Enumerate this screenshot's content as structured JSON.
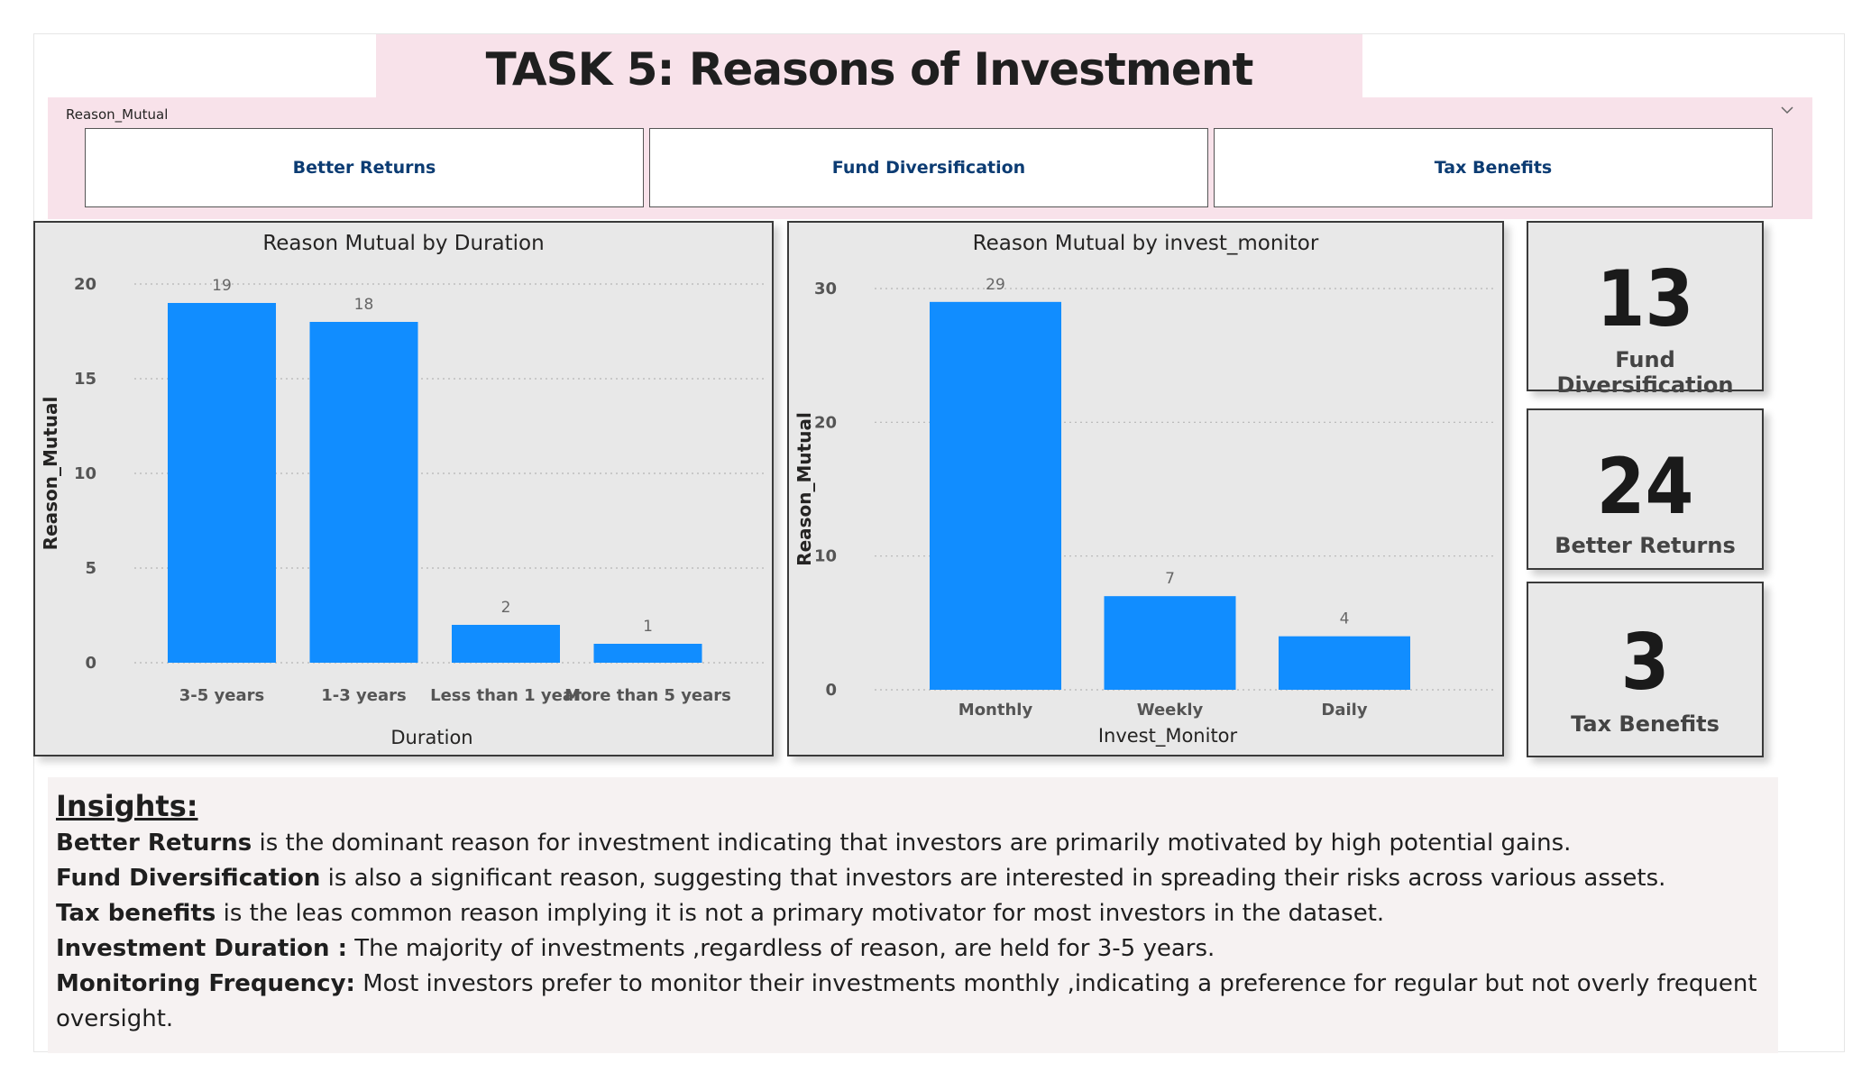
{
  "page": {
    "title": "TASK 5: Reasons of Investment"
  },
  "slicer": {
    "header": "Reason_Mutual",
    "options": [
      "Better Returns",
      "Fund Diversification",
      "Tax Benefits"
    ]
  },
  "colors": {
    "bar": "#118dff",
    "title_band": "#f8e2ea",
    "slicer_text": "#0c3c73",
    "panel_bg": "#e8e8e8"
  },
  "chart_data": [
    {
      "type": "bar",
      "title": "Reason Mutual by Duration",
      "xlabel": "Duration",
      "ylabel": "Reason_Mutual",
      "categories": [
        "3-5 years",
        "1-3 years",
        "Less than 1 year",
        "More than 5 years"
      ],
      "values": [
        19,
        18,
        2,
        1
      ],
      "yticks": [
        0,
        5,
        10,
        15,
        20
      ],
      "ylim": [
        0,
        20
      ],
      "grid": true,
      "data_labels": true
    },
    {
      "type": "bar",
      "title": "Reason Mutual by invest_monitor",
      "xlabel": "Invest_Monitor",
      "ylabel": "Reason_Mutual",
      "categories": [
        "Monthly",
        "Weekly",
        "Daily"
      ],
      "values": [
        29,
        7,
        4
      ],
      "yticks": [
        0,
        10,
        20,
        30
      ],
      "ylim": [
        0,
        30
      ],
      "grid": true,
      "data_labels": true
    }
  ],
  "cards": [
    {
      "value": "13",
      "label": "Fund Diversification"
    },
    {
      "value": "24",
      "label": "Better Returns"
    },
    {
      "value": "3",
      "label": "Tax Benefits"
    }
  ],
  "insights": {
    "heading": "Insights:",
    "lines": [
      {
        "bold": "Better Returns",
        "text": " is the dominant reason for investment indicating that investors are primarily motivated by high potential gains."
      },
      {
        "bold": "Fund Diversification",
        "text": " is also a significant reason, suggesting that investors are interested in spreading their risks across various assets."
      },
      {
        "bold": "Tax benefits",
        "text": "  is the leas common reason implying it is not a primary motivator for most investors in the dataset."
      },
      {
        "bold": "Investment Duration :",
        "text": " The majority of investments ,regardless of reason, are held for 3-5 years."
      },
      {
        "bold": "Monitoring Frequency:",
        "text": " Most investors prefer to monitor their investments monthly ,indicating a preference for regular but not overly frequent oversight."
      }
    ]
  }
}
